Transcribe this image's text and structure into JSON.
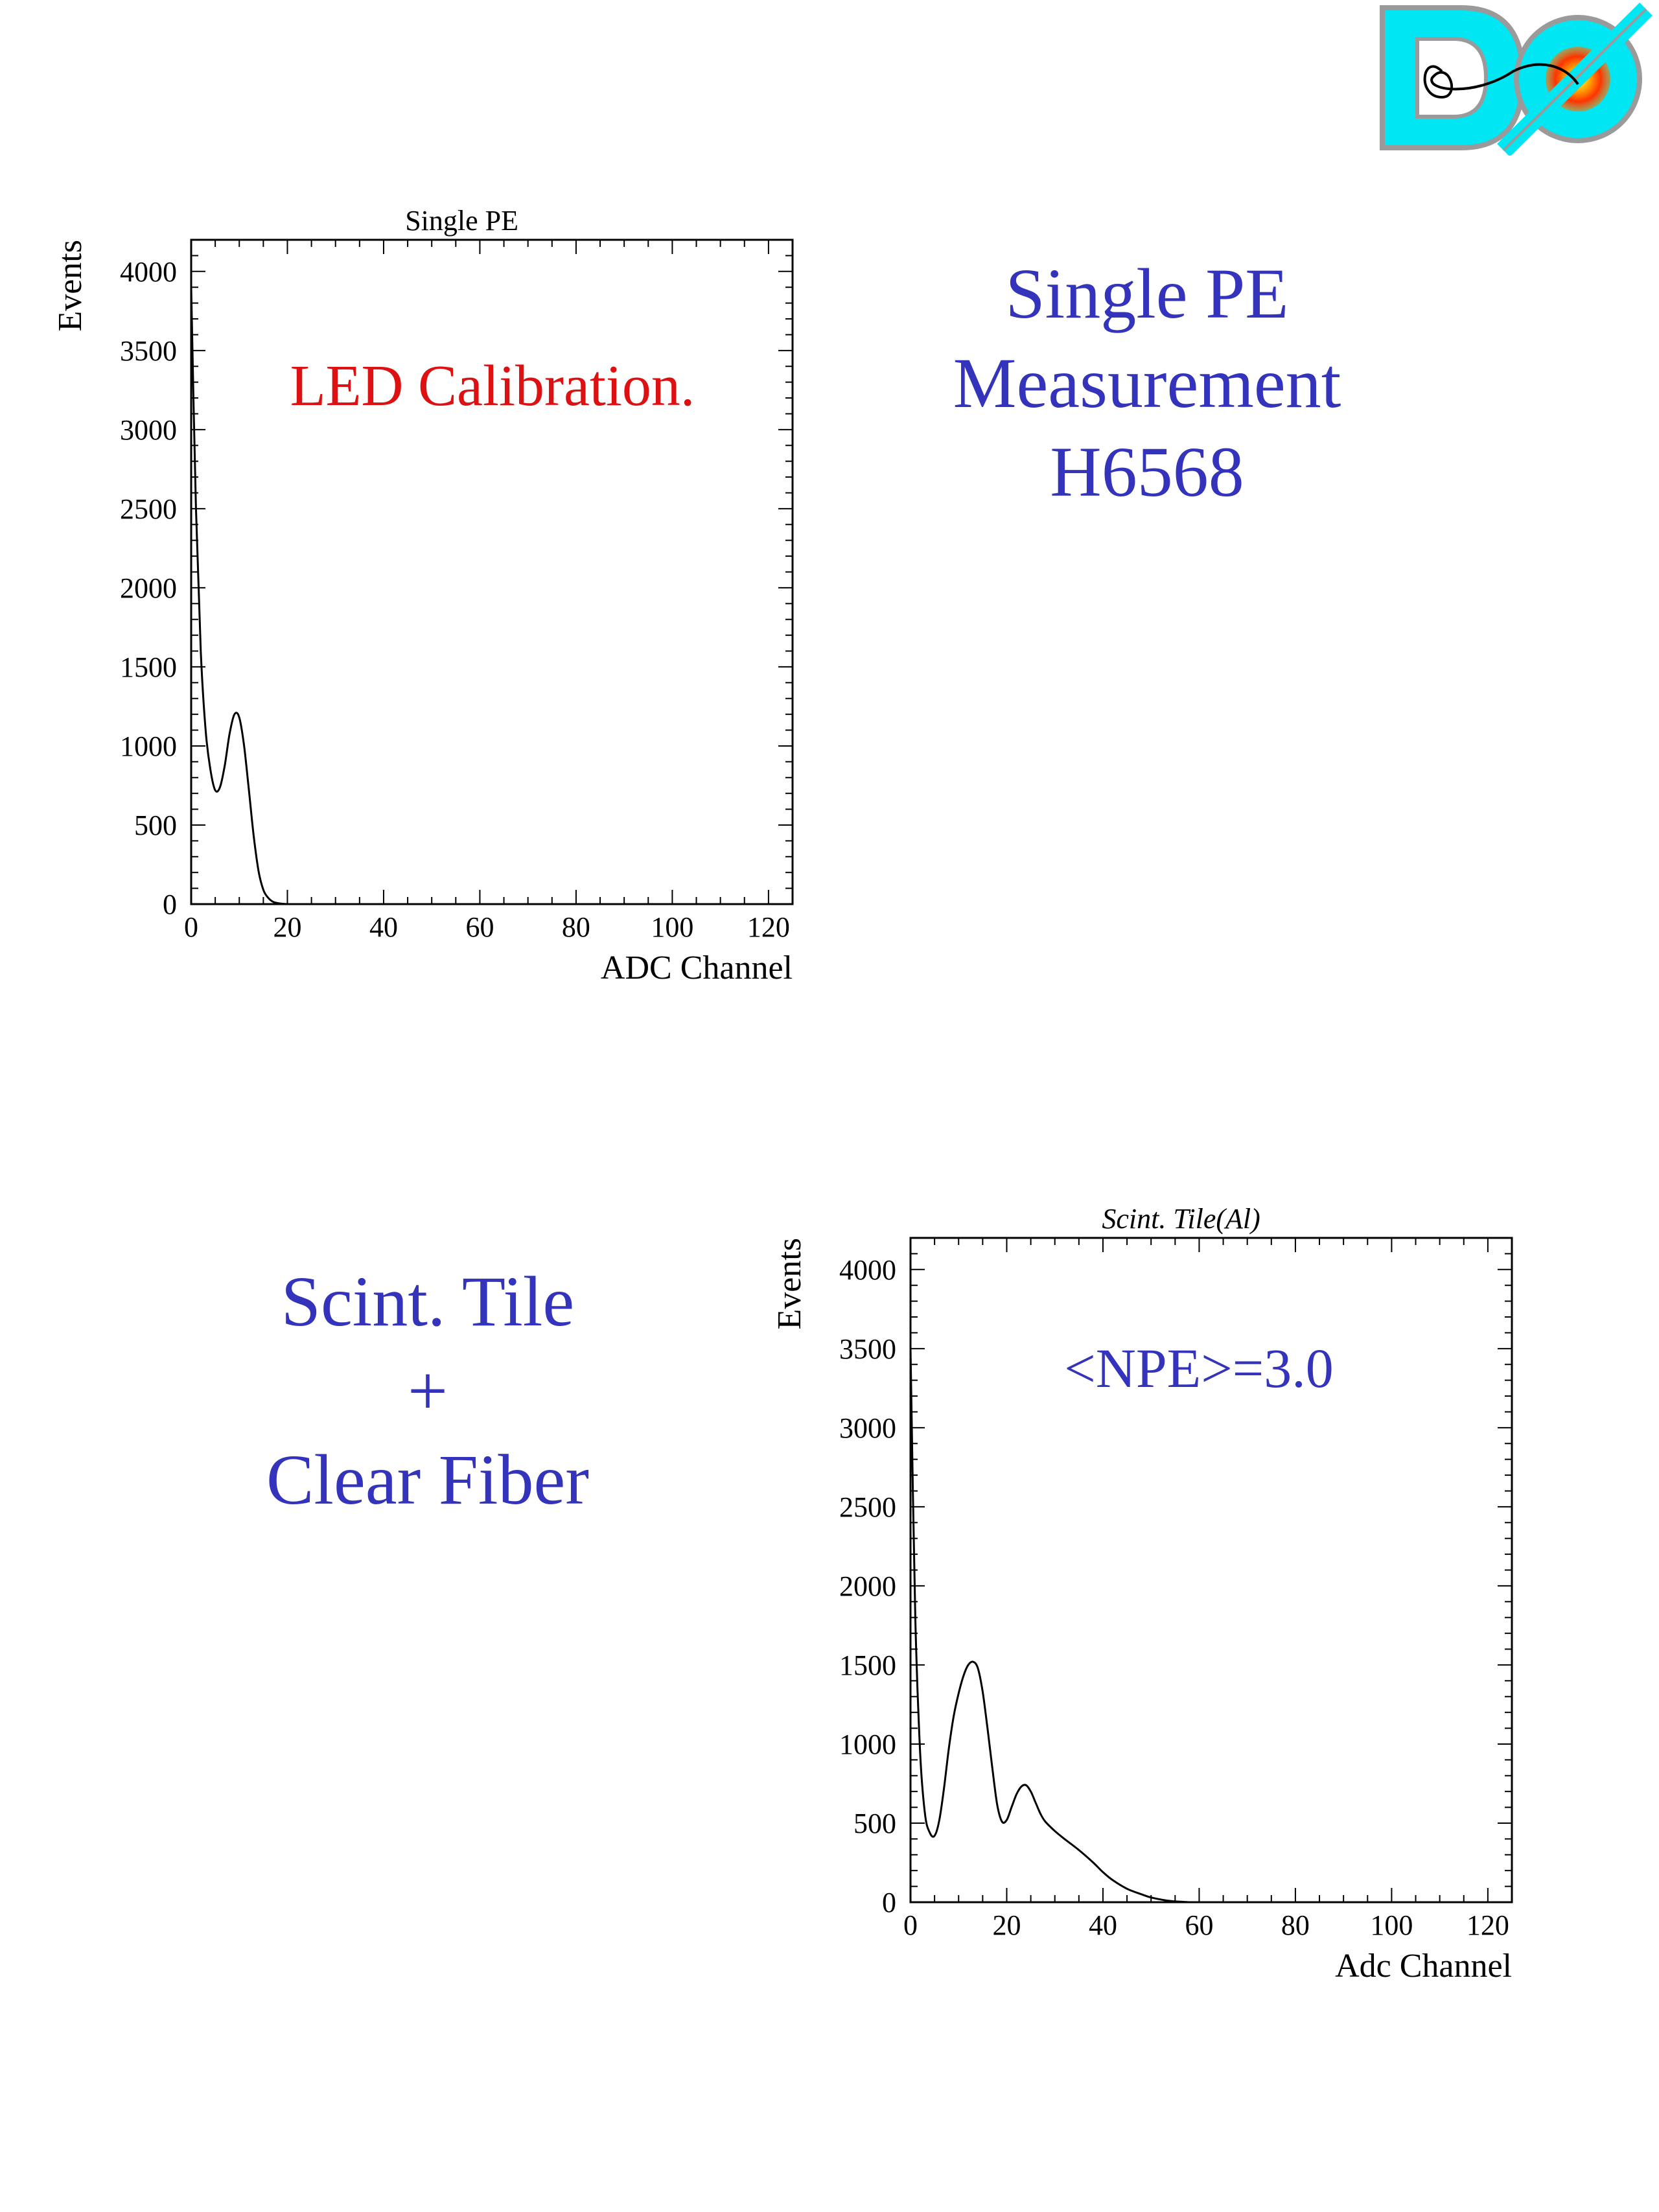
{
  "logo": {
    "text": "DØ"
  },
  "top_right_text": [
    "Single PE",
    "Measurement",
    "H6568"
  ],
  "bottom_left_text": [
    "Scint. Tile",
    "+",
    "Clear Fiber"
  ],
  "colors": {
    "blue_text": "#3333bb",
    "red_text": "#dd1111",
    "curve": "#000000",
    "logo_cyan": "#00e6f2"
  },
  "chart_data": [
    {
      "type": "line",
      "title": "Single PE",
      "xlabel": "ADC Channel",
      "ylabel": "Events",
      "annotation": "LED Calibration.",
      "xlim": [
        0,
        125
      ],
      "ylim": [
        0,
        4200
      ],
      "xticks": [
        0,
        20,
        40,
        60,
        80,
        100,
        120
      ],
      "yticks": [
        0,
        500,
        1000,
        1500,
        2000,
        2500,
        3000,
        3500,
        4000
      ],
      "x": [
        0,
        1,
        2,
        3,
        4,
        5,
        6,
        7,
        8,
        9,
        10,
        11,
        12,
        13,
        14,
        15,
        16,
        17,
        18,
        19,
        20,
        22,
        25
      ],
      "y": [
        3900,
        2500,
        1600,
        1100,
        850,
        720,
        740,
        880,
        1080,
        1200,
        1180,
        1000,
        720,
        430,
        210,
        90,
        40,
        15,
        6,
        2,
        0,
        0,
        0
      ]
    },
    {
      "type": "line",
      "title": "Scint. Tile(Al)",
      "xlabel": "Adc Channel",
      "ylabel": "Events",
      "annotation": "<NPE>=3.0",
      "xlim": [
        0,
        125
      ],
      "ylim": [
        0,
        4200
      ],
      "xticks": [
        0,
        20,
        40,
        60,
        80,
        100,
        120
      ],
      "yticks": [
        0,
        500,
        1000,
        1500,
        2000,
        2500,
        3000,
        3500,
        4000
      ],
      "x": [
        0,
        1,
        2,
        3,
        4,
        5,
        6,
        7,
        8,
        9,
        10,
        11,
        12,
        13,
        14,
        15,
        16,
        17,
        18,
        19,
        20,
        21,
        22,
        23,
        24,
        25,
        26,
        27,
        28,
        30,
        32,
        35,
        38,
        40,
        42,
        45,
        48,
        50,
        53,
        55,
        58
      ],
      "y": [
        3500,
        1800,
        950,
        560,
        440,
        420,
        520,
        730,
        980,
        1180,
        1320,
        1430,
        1500,
        1520,
        1480,
        1330,
        1100,
        850,
        620,
        510,
        520,
        600,
        680,
        730,
        740,
        700,
        630,
        560,
        510,
        450,
        400,
        330,
        250,
        190,
        140,
        85,
        50,
        30,
        12,
        5,
        0
      ]
    }
  ]
}
